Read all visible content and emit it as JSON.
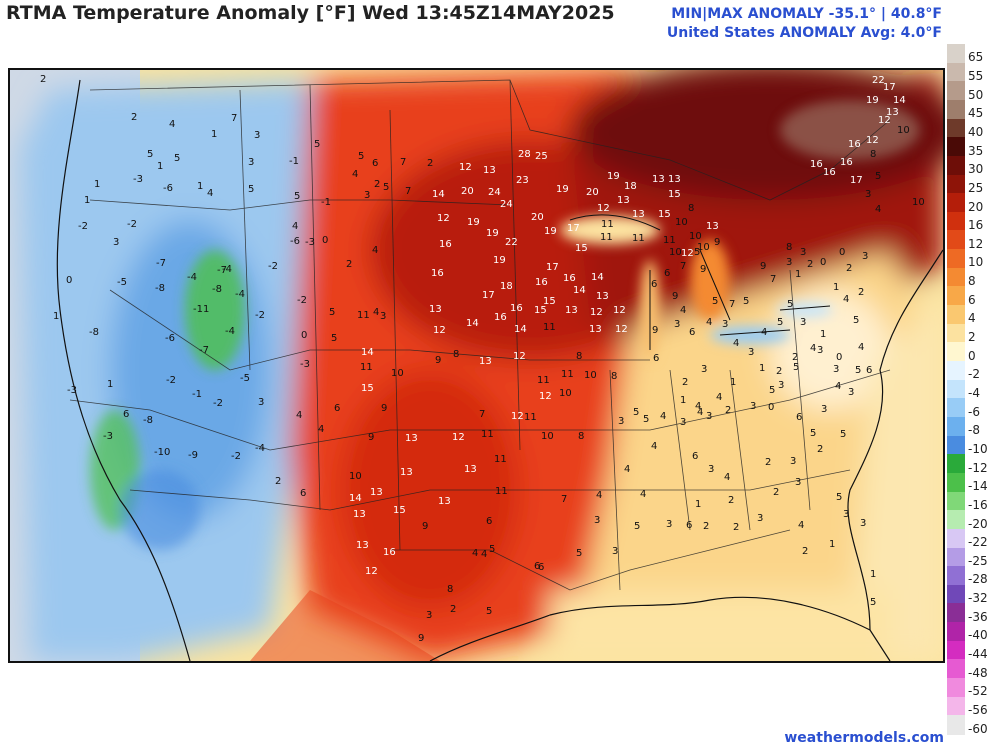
{
  "header": {
    "title": "RTMA Temperature Anomaly [°F]  Wed 13:45Z14MAY2025",
    "minmax": "MIN|MAX ANOMALY -35.1°  |  40.8°F",
    "average": "United States ANOMALY Avg: 4.0°F"
  },
  "footer": {
    "credit": "weathermodels.com"
  },
  "colorbar": {
    "labels": [
      "65",
      "55",
      "50",
      "45",
      "40",
      "35",
      "30",
      "25",
      "20",
      "16",
      "12",
      "10",
      "8",
      "6",
      "4",
      "2",
      "0",
      "-2",
      "-4",
      "-6",
      "-8",
      "-10",
      "-12",
      "-14",
      "-16",
      "-20",
      "-22",
      "-25",
      "-28",
      "-32",
      "-36",
      "-40",
      "-44",
      "-48",
      "-52",
      "-56",
      "-60"
    ],
    "colors": [
      "#d9d2ca",
      "#cab9ad",
      "#b59b8b",
      "#9e7e6c",
      "#6e3a2a",
      "#4a0a06",
      "#6e0e08",
      "#8e1408",
      "#b41e0a",
      "#d0300e",
      "#e24a18",
      "#ee6a24",
      "#f48a32",
      "#f8a848",
      "#fac870",
      "#fce2a0",
      "#fff7d0",
      "#e6f4ff",
      "#c4e4fc",
      "#98ccf6",
      "#6cb0ee",
      "#4a8ce0",
      "#2aaa3a",
      "#4cc04a",
      "#80d878",
      "#b6ecb0",
      "#d8c8f4",
      "#b49ce6",
      "#9070d4",
      "#7048b8",
      "#8a2e96",
      "#b024a8",
      "#d42cc0",
      "#e65ad2",
      "#f08ade",
      "#f4b6ea",
      "#e8e8e8"
    ]
  },
  "map": {
    "labels": [
      [
        "22",
        872,
        76
      ],
      [
        "17",
        883,
        83
      ],
      [
        "19",
        866,
        96
      ],
      [
        "14",
        893,
        96
      ],
      [
        "13",
        886,
        108
      ],
      [
        "12",
        878,
        116
      ],
      [
        "10",
        897,
        126
      ],
      [
        "12",
        866,
        136
      ],
      [
        "16",
        848,
        140
      ],
      [
        "8",
        870,
        150
      ],
      [
        "16",
        810,
        160
      ],
      [
        "16",
        823,
        168
      ],
      [
        "16",
        840,
        158
      ],
      [
        "17",
        850,
        176
      ],
      [
        "5",
        875,
        172
      ],
      [
        "3",
        865,
        190
      ],
      [
        "4",
        875,
        205
      ],
      [
        "10",
        912,
        198
      ],
      [
        "28",
        518,
        150
      ],
      [
        "25",
        535,
        152
      ],
      [
        "12",
        459,
        163
      ],
      [
        "13",
        483,
        166
      ],
      [
        "23",
        516,
        176
      ],
      [
        "20",
        461,
        187
      ],
      [
        "24",
        488,
        188
      ],
      [
        "24",
        500,
        200
      ],
      [
        "14",
        432,
        190
      ],
      [
        "7",
        405,
        187
      ],
      [
        "2",
        427,
        159
      ],
      [
        "19",
        556,
        185
      ],
      [
        "20",
        586,
        188
      ],
      [
        "19",
        607,
        172
      ],
      [
        "18",
        624,
        182
      ],
      [
        "13",
        617,
        196
      ],
      [
        "13",
        652,
        175
      ],
      [
        "13",
        668,
        175
      ],
      [
        "15",
        668,
        190
      ],
      [
        "12",
        597,
        204
      ],
      [
        "11",
        601,
        220
      ],
      [
        "11",
        600,
        233
      ],
      [
        "12",
        437,
        214
      ],
      [
        "19",
        467,
        218
      ],
      [
        "19",
        486,
        229
      ],
      [
        "22",
        505,
        238
      ],
      [
        "20",
        531,
        213
      ],
      [
        "19",
        544,
        227
      ],
      [
        "17",
        567,
        224
      ],
      [
        "15",
        575,
        244
      ],
      [
        "16",
        439,
        240
      ],
      [
        "13",
        632,
        210
      ],
      [
        "11",
        632,
        234
      ],
      [
        "15",
        658,
        210
      ],
      [
        "10",
        675,
        218
      ],
      [
        "13",
        706,
        222
      ],
      [
        "8",
        688,
        204
      ],
      [
        "11",
        663,
        236
      ],
      [
        "10",
        669,
        248
      ],
      [
        "10",
        689,
        232
      ],
      [
        "12",
        681,
        249
      ],
      [
        "10",
        697,
        243
      ],
      [
        "9",
        714,
        238
      ],
      [
        "16",
        431,
        269
      ],
      [
        "19",
        493,
        256
      ],
      [
        "17",
        546,
        263
      ],
      [
        "16",
        563,
        274
      ],
      [
        "14",
        591,
        273
      ],
      [
        "18",
        500,
        282
      ],
      [
        "17",
        482,
        291
      ],
      [
        "16",
        535,
        278
      ],
      [
        "15",
        543,
        297
      ],
      [
        "14",
        573,
        286
      ],
      [
        "13",
        596,
        292
      ],
      [
        "16",
        510,
        304
      ],
      [
        "15",
        534,
        306
      ],
      [
        "13",
        565,
        306
      ],
      [
        "12",
        590,
        308
      ],
      [
        "12",
        613,
        306
      ],
      [
        "13",
        429,
        305
      ],
      [
        "14",
        466,
        319
      ],
      [
        "16",
        494,
        313
      ],
      [
        "14",
        514,
        325
      ],
      [
        "11",
        543,
        323
      ],
      [
        "12",
        433,
        326
      ],
      [
        "13",
        589,
        325
      ],
      [
        "12",
        615,
        325
      ],
      [
        "12",
        513,
        352
      ],
      [
        "13",
        479,
        357
      ],
      [
        "11",
        537,
        376
      ],
      [
        "12",
        539,
        392
      ],
      [
        "11",
        561,
        370
      ],
      [
        "8",
        576,
        352
      ],
      [
        "10",
        559,
        389
      ],
      [
        "10",
        584,
        371
      ],
      [
        "8",
        611,
        372
      ],
      [
        "9",
        435,
        356
      ],
      [
        "8",
        453,
        350
      ],
      [
        "10",
        391,
        369
      ],
      [
        "11",
        360,
        363
      ],
      [
        "15",
        361,
        384
      ],
      [
        "14",
        361,
        348
      ],
      [
        "11",
        357,
        311
      ],
      [
        "9",
        381,
        404
      ],
      [
        "13",
        405,
        434
      ],
      [
        "9",
        368,
        433
      ],
      [
        "12",
        452,
        433
      ],
      [
        "11",
        481,
        430
      ],
      [
        "7",
        479,
        410
      ],
      [
        "12",
        511,
        412
      ],
      [
        "11",
        524,
        413
      ],
      [
        "10",
        541,
        432
      ],
      [
        "8",
        578,
        432
      ],
      [
        "13",
        400,
        468
      ],
      [
        "13",
        464,
        465
      ],
      [
        "11",
        494,
        455
      ],
      [
        "11",
        495,
        487
      ],
      [
        "10",
        349,
        472
      ],
      [
        "14",
        349,
        494
      ],
      [
        "13",
        370,
        488
      ],
      [
        "13",
        353,
        510
      ],
      [
        "15",
        393,
        506
      ],
      [
        "13",
        438,
        497
      ],
      [
        "9",
        422,
        522
      ],
      [
        "6",
        486,
        517
      ],
      [
        "13",
        356,
        541
      ],
      [
        "16",
        383,
        548
      ],
      [
        "12",
        365,
        567
      ],
      [
        "9",
        652,
        326
      ],
      [
        "6",
        653,
        354
      ],
      [
        "3",
        674,
        320
      ],
      [
        "4",
        680,
        306
      ],
      [
        "6",
        689,
        328
      ],
      [
        "5",
        712,
        297
      ],
      [
        "7",
        729,
        300
      ],
      [
        "5",
        743,
        297
      ],
      [
        "4",
        706,
        318
      ],
      [
        "3",
        722,
        320
      ],
      [
        "4",
        733,
        339
      ],
      [
        "3",
        748,
        348
      ],
      [
        "4",
        761,
        328
      ],
      [
        "5",
        777,
        318
      ],
      [
        "5",
        787,
        300
      ],
      [
        "3",
        800,
        318
      ],
      [
        "1",
        820,
        330
      ],
      [
        "4",
        810,
        344
      ],
      [
        "2",
        792,
        353
      ],
      [
        "9",
        760,
        262
      ],
      [
        "7",
        770,
        275
      ],
      [
        "3",
        786,
        258
      ],
      [
        "8",
        786,
        243
      ],
      [
        "3",
        800,
        248
      ],
      [
        "2",
        807,
        260
      ],
      [
        "1",
        795,
        270
      ],
      [
        "0",
        820,
        258
      ],
      [
        "0",
        839,
        248
      ],
      [
        "3",
        862,
        252
      ],
      [
        "2",
        858,
        288
      ],
      [
        "4",
        843,
        295
      ],
      [
        "1",
        833,
        283
      ],
      [
        "2",
        846,
        264
      ],
      [
        "5",
        853,
        316
      ],
      [
        "4",
        858,
        343
      ],
      [
        "6",
        866,
        366
      ],
      [
        "3",
        848,
        388
      ],
      [
        "5",
        694,
        248
      ],
      [
        "9",
        700,
        265
      ],
      [
        "7",
        680,
        262
      ],
      [
        "6",
        664,
        269
      ],
      [
        "6",
        651,
        280
      ],
      [
        "9",
        672,
        292
      ],
      [
        "3",
        701,
        365
      ],
      [
        "2",
        682,
        378
      ],
      [
        "1",
        680,
        396
      ],
      [
        "4",
        695,
        402
      ],
      [
        "4",
        716,
        393
      ],
      [
        "1",
        730,
        378
      ],
      [
        "1",
        759,
        364
      ],
      [
        "2",
        776,
        367
      ],
      [
        "5",
        793,
        363
      ],
      [
        "3",
        817,
        346
      ],
      [
        "0",
        836,
        353
      ],
      [
        "3",
        833,
        365
      ],
      [
        "5",
        855,
        366
      ],
      [
        "3",
        618,
        417
      ],
      [
        "5",
        633,
        408
      ],
      [
        "5",
        643,
        415
      ],
      [
        "4",
        660,
        412
      ],
      [
        "3",
        680,
        418
      ],
      [
        "4",
        697,
        408
      ],
      [
        "3",
        706,
        412
      ],
      [
        "2",
        725,
        406
      ],
      [
        "3",
        750,
        402
      ],
      [
        "5",
        769,
        386
      ],
      [
        "3",
        778,
        381
      ],
      [
        "0",
        768,
        403
      ],
      [
        "6",
        796,
        413
      ],
      [
        "3",
        821,
        405
      ],
      [
        "4",
        835,
        382
      ],
      [
        "4",
        624,
        465
      ],
      [
        "4",
        651,
        442
      ],
      [
        "6",
        692,
        452
      ],
      [
        "3",
        708,
        465
      ],
      [
        "4",
        724,
        473
      ],
      [
        "2",
        765,
        458
      ],
      [
        "3",
        790,
        457
      ],
      [
        "5",
        810,
        429
      ],
      [
        "2",
        817,
        445
      ],
      [
        "5",
        840,
        430
      ],
      [
        "3",
        795,
        478
      ],
      [
        "1",
        695,
        500
      ],
      [
        "2",
        728,
        496
      ],
      [
        "2",
        773,
        488
      ],
      [
        "3",
        843,
        510
      ],
      [
        "5",
        836,
        493
      ],
      [
        "3",
        594,
        516
      ],
      [
        "4",
        640,
        490
      ],
      [
        "4",
        596,
        491
      ],
      [
        "7",
        561,
        495
      ],
      [
        "5",
        634,
        522
      ],
      [
        "3",
        666,
        520
      ],
      [
        "6",
        686,
        521
      ],
      [
        "2",
        703,
        522
      ],
      [
        "2",
        733,
        523
      ],
      [
        "3",
        757,
        514
      ],
      [
        "4",
        798,
        521
      ],
      [
        "1",
        829,
        540
      ],
      [
        "2",
        802,
        547
      ],
      [
        "3",
        860,
        519
      ],
      [
        "1",
        870,
        570
      ],
      [
        "5",
        870,
        598
      ],
      [
        "3",
        612,
        547
      ],
      [
        "5",
        576,
        549
      ],
      [
        "6",
        538,
        563
      ],
      [
        "5",
        486,
        607
      ],
      [
        "4",
        481,
        550
      ],
      [
        "5",
        489,
        545
      ],
      [
        "6",
        534,
        562
      ],
      [
        "4",
        472,
        549
      ],
      [
        "2",
        450,
        605
      ],
      [
        "8",
        447,
        585
      ],
      [
        "3",
        426,
        611
      ],
      [
        "9",
        418,
        634
      ],
      [
        "2",
        40,
        75
      ],
      [
        "2",
        131,
        113
      ],
      [
        "4",
        169,
        120
      ],
      [
        "1",
        211,
        130
      ],
      [
        "7",
        231,
        114
      ],
      [
        "3",
        254,
        131
      ],
      [
        "5",
        314,
        140
      ],
      [
        "6",
        372,
        159
      ],
      [
        "4",
        352,
        170
      ],
      [
        "2",
        374,
        180
      ],
      [
        "7",
        400,
        158
      ],
      [
        "5",
        358,
        152
      ],
      [
        "3",
        364,
        191
      ],
      [
        "5",
        383,
        183
      ],
      [
        "5",
        147,
        150
      ],
      [
        "5",
        174,
        154
      ],
      [
        "1",
        157,
        162
      ],
      [
        "-1",
        289,
        157
      ],
      [
        "3",
        248,
        158
      ],
      [
        "1",
        197,
        182
      ],
      [
        "-3",
        133,
        175
      ],
      [
        "1",
        94,
        180
      ],
      [
        "1",
        84,
        196
      ],
      [
        "-6",
        163,
        184
      ],
      [
        "4",
        207,
        189
      ],
      [
        "5",
        248,
        185
      ],
      [
        "5",
        294,
        192
      ],
      [
        "0",
        322,
        236
      ],
      [
        "-1",
        321,
        198
      ],
      [
        "4",
        292,
        222
      ],
      [
        "-2",
        78,
        222
      ],
      [
        "-2",
        127,
        220
      ],
      [
        "3",
        113,
        238
      ],
      [
        "-5",
        117,
        278
      ],
      [
        "-4",
        187,
        273
      ],
      [
        "-7",
        156,
        259
      ],
      [
        "-8",
        155,
        284
      ],
      [
        "-7",
        217,
        266
      ],
      [
        "-8",
        212,
        285
      ],
      [
        "-11",
        193,
        305
      ],
      [
        "-4",
        235,
        290
      ],
      [
        "-4",
        222,
        265
      ],
      [
        "-2",
        268,
        262
      ],
      [
        "-6",
        290,
        237
      ],
      [
        "-3",
        305,
        238
      ],
      [
        "2",
        346,
        260
      ],
      [
        "4",
        372,
        246
      ],
      [
        "0",
        66,
        276
      ],
      [
        "-8",
        89,
        328
      ],
      [
        "1",
        53,
        312
      ],
      [
        "-6",
        165,
        334
      ],
      [
        "-7",
        199,
        346
      ],
      [
        "-4",
        225,
        327
      ],
      [
        "-2",
        255,
        311
      ],
      [
        "5",
        329,
        308
      ],
      [
        "3",
        380,
        312
      ],
      [
        "4",
        373,
        308
      ],
      [
        "-2",
        297,
        296
      ],
      [
        "0",
        301,
        331
      ],
      [
        "5",
        331,
        334
      ],
      [
        "-3",
        300,
        360
      ],
      [
        "-2",
        166,
        376
      ],
      [
        "4",
        296,
        411
      ],
      [
        "3",
        258,
        398
      ],
      [
        "-5",
        240,
        374
      ],
      [
        "1",
        107,
        380
      ],
      [
        "-3",
        67,
        386
      ],
      [
        "6",
        123,
        410
      ],
      [
        "-8",
        143,
        416
      ],
      [
        "-9",
        188,
        451
      ],
      [
        "-2",
        231,
        452
      ],
      [
        "-4",
        255,
        444
      ],
      [
        "-10",
        154,
        448
      ],
      [
        "-3",
        103,
        432
      ],
      [
        "-1",
        192,
        390
      ],
      [
        "-2",
        213,
        399
      ],
      [
        "2",
        275,
        477
      ],
      [
        "6",
        300,
        489
      ],
      [
        "4",
        318,
        425
      ],
      [
        "6",
        334,
        404
      ]
    ]
  }
}
